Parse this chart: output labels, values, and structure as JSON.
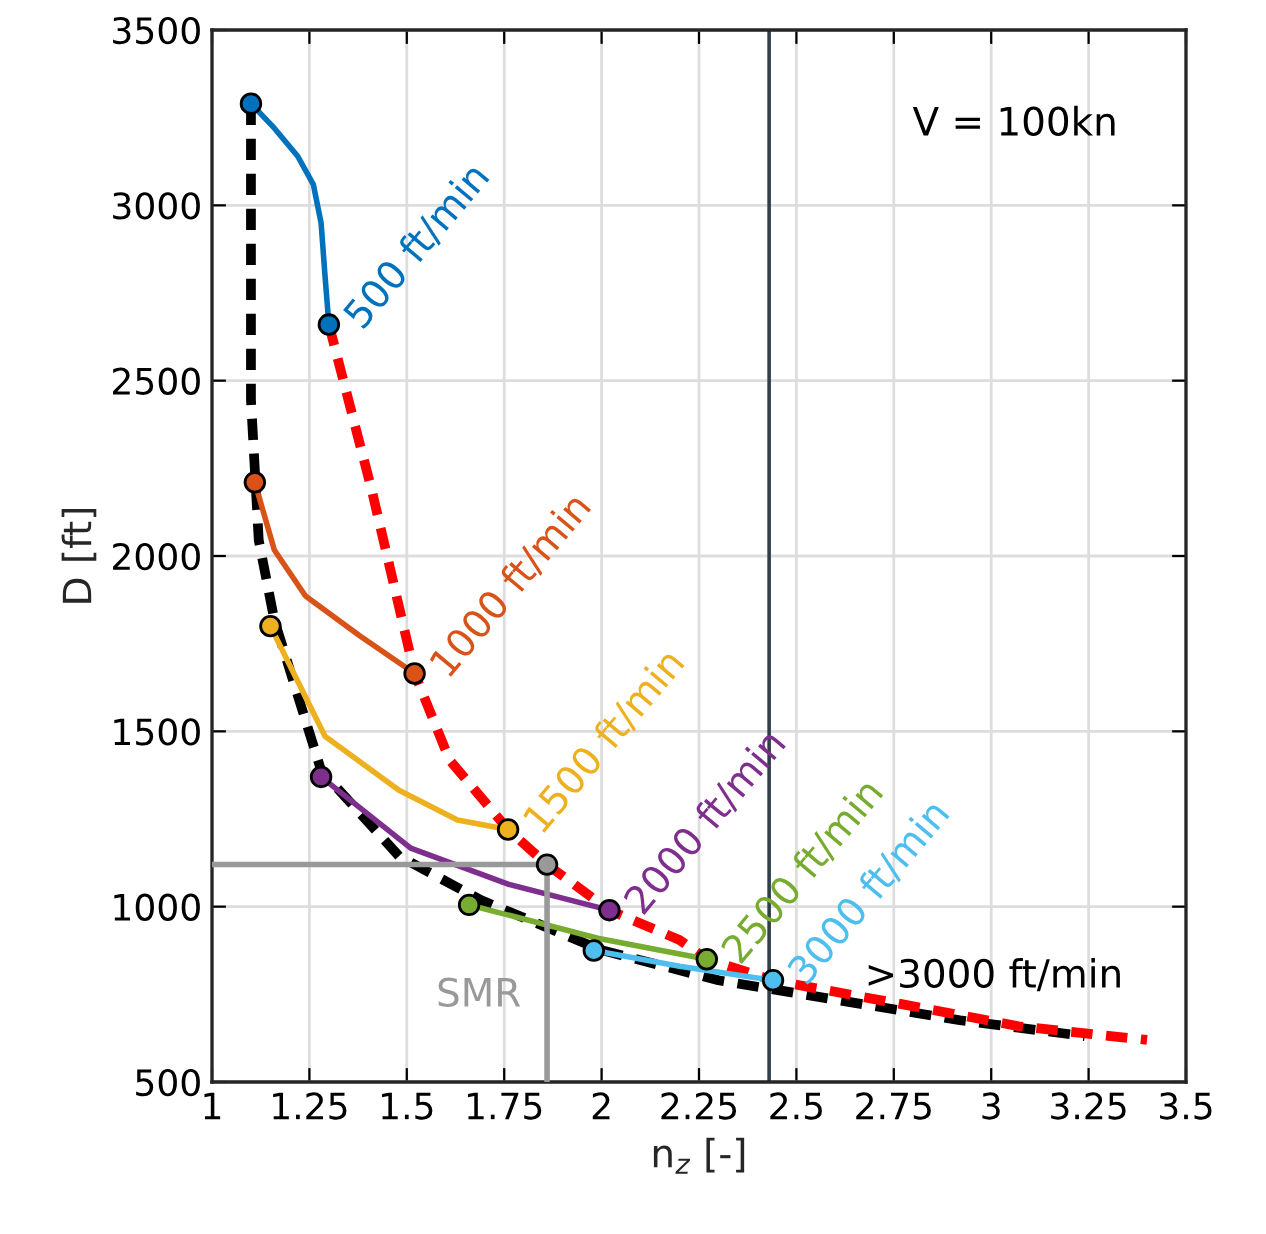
{
  "chart_data": {
    "type": "line",
    "xlabel": "n$_{z}$ [-]",
    "ylabel": "D [ft]",
    "xlim": [
      1,
      3.5
    ],
    "xticks": [
      1,
      1.25,
      1.5,
      1.75,
      2,
      2.25,
      2.5,
      2.75,
      3,
      3.25,
      3.5
    ],
    "ylim": [
      500,
      3500
    ],
    "yticks": [
      500,
      1000,
      1500,
      2000,
      2500,
      3000,
      3500
    ],
    "grid": true,
    "legend": false,
    "series": [
      {
        "color": "#000000",
        "line_style": "dashed",
        "x": [
          1.1,
          1.1,
          1.12,
          1.16,
          1.28,
          1.48,
          1.69,
          2.0,
          2.3,
          2.61,
          2.92,
          3.24
        ],
        "values": [
          3290,
          2445,
          2045,
          1817,
          1389,
          1144,
          1019,
          876,
          790,
          733,
          676,
          631
        ]
      },
      {
        "color": "#ff0000",
        "line_style": "dashed",
        "x": [
          1.3,
          1.41,
          1.52,
          1.61,
          1.76,
          1.86,
          2.02,
          2.2,
          2.27,
          2.44,
          2.77,
          3.07,
          3.4
        ],
        "values": [
          2660,
          2188,
          1665,
          1418,
          1220,
          1120,
          990,
          905,
          850,
          790,
          722,
          659,
          620
        ]
      },
      {
        "name": "500 ft/min",
        "color": "#0072bd",
        "line_style": "solid",
        "x": [
          1.1,
          1.16,
          1.22,
          1.26,
          1.28,
          1.29,
          1.3
        ],
        "values": [
          3290,
          3220,
          3140,
          3060,
          2950,
          2800,
          2660
        ]
      },
      {
        "name": "1000 ft/min",
        "color": "#d95319",
        "line_style": "solid",
        "x": [
          1.11,
          1.16,
          1.24,
          1.38,
          1.52
        ],
        "values": [
          2210,
          2017,
          1886,
          1772,
          1665
        ]
      },
      {
        "name": "1500 ft/min",
        "color": "#edb120",
        "line_style": "solid",
        "x": [
          1.15,
          1.29,
          1.48,
          1.63,
          1.76
        ],
        "values": [
          1800,
          1486,
          1332,
          1247,
          1220
        ]
      },
      {
        "name": "2000 ft/min",
        "color": "#7e2f8e",
        "line_style": "solid",
        "x": [
          1.28,
          1.51,
          1.76,
          2.02
        ],
        "values": [
          1370,
          1167,
          1064,
          990
        ]
      },
      {
        "name": "2500 ft/min",
        "color": "#77ac30",
        "line_style": "solid",
        "x": [
          1.66,
          1.99,
          2.27
        ],
        "values": [
          1005,
          910,
          850
        ]
      },
      {
        "name": "3000 ft/min",
        "color": "#4dbeee",
        "line_style": "solid",
        "x": [
          1.98,
          2.2,
          2.44
        ],
        "values": [
          875,
          830,
          790
        ]
      },
      {
        "color": "#999999",
        "line_style": "solid",
        "x": [
          1,
          1.86,
          1.86
        ],
        "values": [
          1120,
          1120,
          500
        ]
      },
      {
        "type": "scatter",
        "marker": "circle",
        "x": [
          1.1,
          1.3,
          1.11,
          1.52,
          1.15,
          1.76,
          1.28,
          2.02,
          1.66,
          2.27,
          1.98,
          2.44,
          1.86
        ],
        "values": [
          3290,
          2660,
          2210,
          1665,
          1800,
          1220,
          1370,
          990,
          1005,
          850,
          875,
          790,
          1120
        ],
        "colors": [
          "#0072bd",
          "#0072bd",
          "#d95319",
          "#d95319",
          "#edb120",
          "#edb120",
          "#7e2f8e",
          "#7e2f8e",
          "#77ac30",
          "#77ac30",
          "#4dbeee",
          "#4dbeee",
          "#999999"
        ]
      }
    ],
    "ref_lines": [
      {
        "axis": "x",
        "value": 2.43,
        "color": "#2f3f4a"
      }
    ],
    "annotations": [
      "V = 100kn",
      ">3000 ft/min",
      "SMR"
    ]
  }
}
